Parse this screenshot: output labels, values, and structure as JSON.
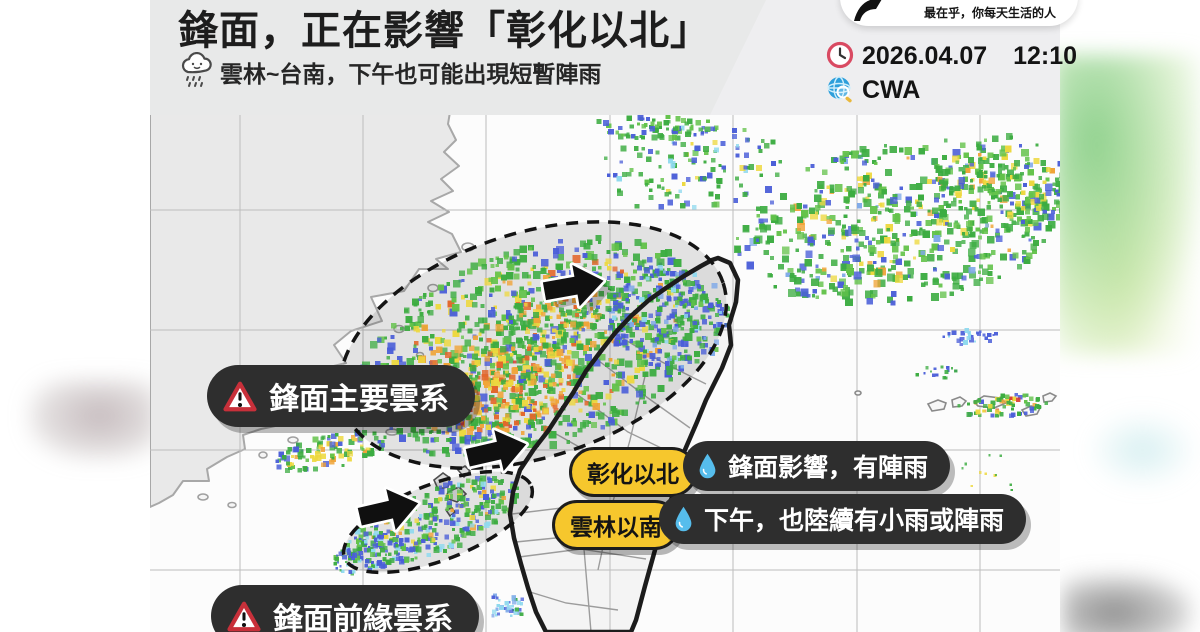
{
  "header": {
    "title": "鋒面，正在影響「彰化以北」",
    "subtitle": "雲林~台南，下午也可能出現短暫陣雨",
    "banner_tagline": "最在乎，你每天生活的人",
    "date": "2026.04.07",
    "time": "12:10",
    "source": "CWA"
  },
  "map": {
    "main_cloud_label": "鋒面主要雲系",
    "leading_cloud_label": "鋒面前緣雲系",
    "callouts": [
      {
        "region": "彰化以北",
        "desc": "鋒面影響，有陣雨"
      },
      {
        "region": "雲林以南",
        "desc": "下午，也陸續有小雨或陣雨"
      }
    ],
    "radar_palette": {
      "green": "#3CAC41",
      "green2": "#63C24A",
      "yellow": "#EDD83F",
      "orange": "#F0A438",
      "deep_orange": "#E2672C",
      "red": "#D63A2F",
      "blue": "#4A5ED8",
      "light_blue": "#7FA9E8",
      "cyan": "#8FD9EE"
    }
  }
}
